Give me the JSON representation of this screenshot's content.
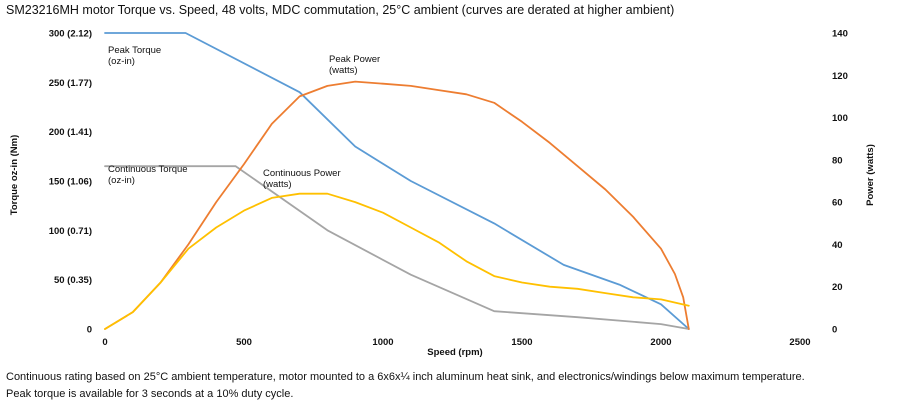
{
  "title": "SM23216MH motor Torque vs. Speed, 48 volts, MDC commutation, 25°C ambient (curves are derated at higher ambient)",
  "footnotes": [
    "Continuous rating based on 25°C ambient temperature, motor mounted to a 6x6x¼ inch aluminum heat sink, and electronics/windings below maximum temperature.",
    "Peak torque is available for 3 seconds at a 10% duty cycle."
  ],
  "chart_data": {
    "type": "line",
    "xlabel": "Speed (rpm)",
    "ylabel_left": "Torque oz-in (Nm)",
    "ylabel_right": "Power (watts)",
    "xlim": [
      0,
      2500
    ],
    "ylim_left": [
      0,
      300
    ],
    "ylim_right": [
      0,
      140
    ],
    "x_ticks": [
      0,
      500,
      1000,
      1500,
      2000,
      2500
    ],
    "y_ticks_left": [
      {
        "value": 0,
        "label": "0"
      },
      {
        "value": 50,
        "label": "50 (0.35)"
      },
      {
        "value": 100,
        "label": "100 (0.71)"
      },
      {
        "value": 150,
        "label": "150 (1.06)"
      },
      {
        "value": 200,
        "label": "200 (1.41)"
      },
      {
        "value": 250,
        "label": "250 (1.77)"
      },
      {
        "value": 300,
        "label": "300 (2.12)"
      }
    ],
    "y_ticks_right": [
      0,
      20,
      40,
      60,
      80,
      100,
      120,
      140
    ],
    "grid": false,
    "series": [
      {
        "name": "Peak Torque (oz-in)",
        "axis": "left",
        "color": "#5b9bd5",
        "label_lines": [
          "Peak Torque",
          "(oz-in)"
        ],
        "x": [
          0,
          290,
          700,
          900,
          1100,
          1400,
          1650,
          1850,
          2000,
          2100
        ],
        "y": [
          300,
          300,
          240,
          185,
          150,
          107,
          65,
          45,
          25,
          0
        ]
      },
      {
        "name": "Continuous Torque (oz-in)",
        "axis": "left",
        "color": "#a5a5a5",
        "label_lines": [
          "Continuous Torque",
          "(oz-in)"
        ],
        "x": [
          0,
          470,
          800,
          1100,
          1400,
          1700,
          2000,
          2100
        ],
        "y": [
          165,
          165,
          100,
          55,
          18,
          12,
          5,
          0
        ]
      },
      {
        "name": "Peak Power (watts)",
        "axis": "right",
        "color": "#ed7d31",
        "label_lines": [
          "Peak Power",
          "(watts)"
        ],
        "x": [
          0,
          100,
          200,
          300,
          400,
          500,
          600,
          700,
          800,
          900,
          1000,
          1100,
          1200,
          1300,
          1400,
          1500,
          1600,
          1700,
          1800,
          1900,
          2000,
          2050,
          2080,
          2100
        ],
        "y": [
          0,
          8,
          22,
          40,
          60,
          78,
          97,
          110,
          115,
          117,
          116,
          115,
          113,
          111,
          107,
          98,
          88,
          77,
          66,
          53,
          38,
          26,
          15,
          0
        ]
      },
      {
        "name": "Continuous Power (watts)",
        "axis": "right",
        "color": "#ffc000",
        "label_lines": [
          "Continuous Power",
          "(watts)"
        ],
        "x": [
          0,
          100,
          200,
          300,
          400,
          500,
          600,
          700,
          800,
          900,
          1000,
          1100,
          1200,
          1300,
          1400,
          1500,
          1600,
          1700,
          1800,
          1900,
          2000,
          2100
        ],
        "y": [
          0,
          8,
          22,
          38,
          48,
          56,
          62,
          64,
          64,
          60,
          55,
          48,
          41,
          32,
          25,
          22,
          20,
          19,
          17,
          15,
          14,
          11
        ]
      }
    ]
  }
}
